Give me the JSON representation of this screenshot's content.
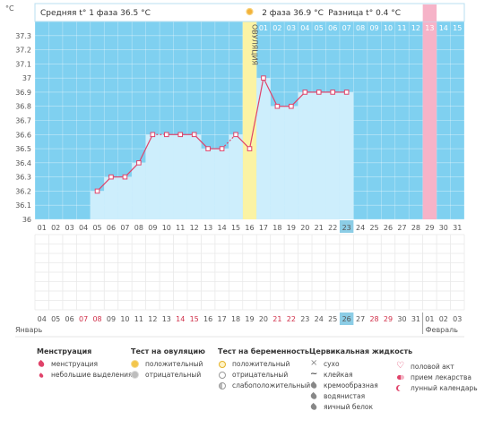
{
  "chart_data": {
    "type": "line",
    "ylabel": "°C",
    "ylim": [
      36.0,
      37.4
    ],
    "y_ticks": [
      "37.3",
      "37.2",
      "37.1",
      "37",
      "36.9",
      "36.8",
      "36.7",
      "36.6",
      "36.5",
      "36.4",
      "36.3",
      "36.2",
      "36.1",
      "36"
    ],
    "phase1_label": "Средняя t° 1 фаза 36.5 °C",
    "phase2_label": "2 фаза 36.9 °C",
    "diff_label": "Разница t° 0.4 °C",
    "ovulation_label": "ОВУЛЯЦИЯ",
    "ovulation_day": 16,
    "cycle_days": [
      1,
      2,
      3,
      4,
      5,
      6,
      7,
      8,
      9,
      10,
      11,
      12,
      13,
      14,
      15,
      16,
      17,
      18,
      19,
      20,
      21,
      22,
      23,
      24,
      25,
      26,
      27,
      28,
      29,
      30,
      31
    ],
    "cycle_day_labels": [
      "01",
      "02",
      "03",
      "04",
      "05",
      "06",
      "07",
      "08",
      "09",
      "10",
      "11",
      "12",
      "13",
      "14",
      "15",
      "16",
      "17",
      "18",
      "19",
      "20",
      "21",
      "22",
      "23",
      "24",
      "25",
      "26",
      "27",
      "28",
      "29",
      "30",
      "31"
    ],
    "current_cycle_day": 23,
    "phase_day_labels": [
      "01",
      "02",
      "03",
      "04",
      "05",
      "06",
      "07",
      "08",
      "09",
      "10",
      "11",
      "12",
      "13",
      "14",
      "15"
    ],
    "phase_day_pink": 13,
    "temperatures": [
      null,
      null,
      null,
      null,
      36.2,
      36.3,
      36.3,
      36.4,
      36.6,
      36.6,
      36.6,
      36.6,
      36.5,
      36.5,
      36.6,
      36.5,
      37.0,
      36.8,
      36.8,
      36.9,
      36.9,
      36.9,
      36.9,
      null,
      null,
      null,
      null,
      null,
      null,
      null,
      null
    ],
    "dotted_segments": [
      [
        9,
        10
      ],
      [
        14,
        15
      ]
    ],
    "calendar_dates": [
      "04",
      "05",
      "06",
      "07",
      "08",
      "09",
      "10",
      "11",
      "12",
      "13",
      "14",
      "15",
      "16",
      "17",
      "18",
      "19",
      "20",
      "21",
      "22",
      "23",
      "24",
      "25",
      "26",
      "27",
      "28",
      "29",
      "30",
      "31",
      "01",
      "02",
      "03"
    ],
    "calendar_red_dates": [
      3,
      4,
      10,
      11,
      17,
      18,
      24,
      25
    ],
    "current_calendar_index": 22,
    "month_start": "Январь",
    "month_end": "Февраль",
    "month_end_index": 28
  },
  "legend": {
    "menstruation": {
      "title": "Менструация",
      "items": [
        "менструация",
        "небольшие выделения"
      ]
    },
    "ovulation_test": {
      "title": "Тест на овуляцию",
      "items": [
        "положительный",
        "отрицательный"
      ]
    },
    "pregnancy_test": {
      "title": "Тест на беременность",
      "items": [
        "положительный",
        "отрицательный",
        "слабоположительный"
      ]
    },
    "cervical_fluid": {
      "title": "Цервикальная жидкость",
      "items": [
        "сухо",
        "клейкая",
        "кремообразная",
        "водянистая",
        "яичный белок"
      ]
    },
    "other": {
      "items": [
        "половой акт",
        "прием лекарства",
        "лунный календарь"
      ]
    }
  },
  "colors": {
    "bg_blue": "#7fd0f0",
    "bar_fill": "#cdeefc",
    "ovulation": "#fbf3a4",
    "pink": "#f6b3c8",
    "line": "#e0436a",
    "current_day": "#8ccde6"
  }
}
